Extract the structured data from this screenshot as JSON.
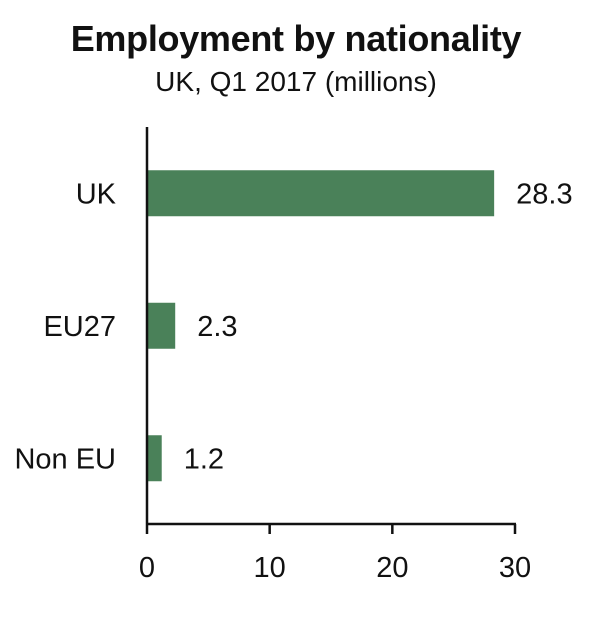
{
  "chart_data": {
    "type": "bar",
    "orientation": "horizontal",
    "title": "Employment by nationality",
    "subtitle": "UK, Q1 2017 (millions)",
    "categories": [
      "UK",
      "EU27",
      "Non EU"
    ],
    "values": [
      28.3,
      2.3,
      1.2
    ],
    "value_labels": [
      "28.3",
      "2.3",
      "1.2"
    ],
    "xlim": [
      0,
      30
    ],
    "xticks": [
      0,
      10,
      20,
      30
    ],
    "xtick_labels": [
      "0",
      "10",
      "20",
      "30"
    ],
    "xlabel": "",
    "ylabel": "",
    "grid": false,
    "legend": "none",
    "bar_color": "#4a8159"
  }
}
